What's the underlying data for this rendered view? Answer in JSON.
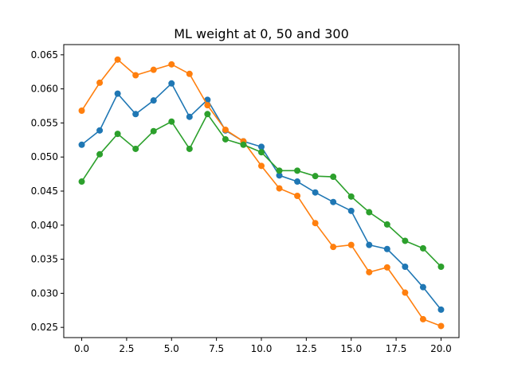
{
  "chart_data": {
    "type": "line",
    "title": "ML weight at 0, 50 and 300",
    "xlabel": "",
    "ylabel": "",
    "xlim": [
      -1,
      21
    ],
    "ylim": [
      0.0235,
      0.0665
    ],
    "x_ticks": [
      0.0,
      2.5,
      5.0,
      7.5,
      10.0,
      12.5,
      15.0,
      17.5,
      20.0
    ],
    "x_tick_labels": [
      "0.0",
      "2.5",
      "5.0",
      "7.5",
      "10.0",
      "12.5",
      "15.0",
      "17.5",
      "20.0"
    ],
    "y_ticks": [
      0.025,
      0.03,
      0.035,
      0.04,
      0.045,
      0.05,
      0.055,
      0.06,
      0.065
    ],
    "y_tick_labels": [
      "0.025",
      "0.030",
      "0.035",
      "0.040",
      "0.045",
      "0.050",
      "0.055",
      "0.060",
      "0.065"
    ],
    "grid": false,
    "x": [
      0,
      1,
      2,
      3,
      4,
      5,
      6,
      7,
      8,
      9,
      10,
      11,
      12,
      13,
      14,
      15,
      16,
      17,
      18,
      19,
      20
    ],
    "series": [
      {
        "color": "#1f77b4",
        "marker": "circle",
        "values": [
          0.0518,
          0.0539,
          0.0593,
          0.0563,
          0.0583,
          0.0608,
          0.0559,
          0.0584,
          0.0539,
          0.0523,
          0.0515,
          0.0473,
          0.0464,
          0.0448,
          0.0434,
          0.0421,
          0.0371,
          0.0365,
          0.0339,
          0.0309,
          0.0276
        ]
      },
      {
        "color": "#ff7f0e",
        "marker": "circle",
        "values": [
          0.0568,
          0.0609,
          0.0643,
          0.062,
          0.0628,
          0.0636,
          0.0622,
          0.0576,
          0.054,
          0.0523,
          0.0487,
          0.0454,
          0.0443,
          0.0403,
          0.0368,
          0.0371,
          0.0331,
          0.0338,
          0.0301,
          0.0262,
          0.0252
        ]
      },
      {
        "color": "#2ca02c",
        "marker": "circle",
        "values": [
          0.0464,
          0.0504,
          0.0534,
          0.0512,
          0.0538,
          0.0552,
          0.0512,
          0.0563,
          0.0526,
          0.0518,
          0.0507,
          0.048,
          0.048,
          0.0472,
          0.0471,
          0.0442,
          0.0419,
          0.0401,
          0.0377,
          0.0366,
          0.0339
        ]
      }
    ]
  }
}
